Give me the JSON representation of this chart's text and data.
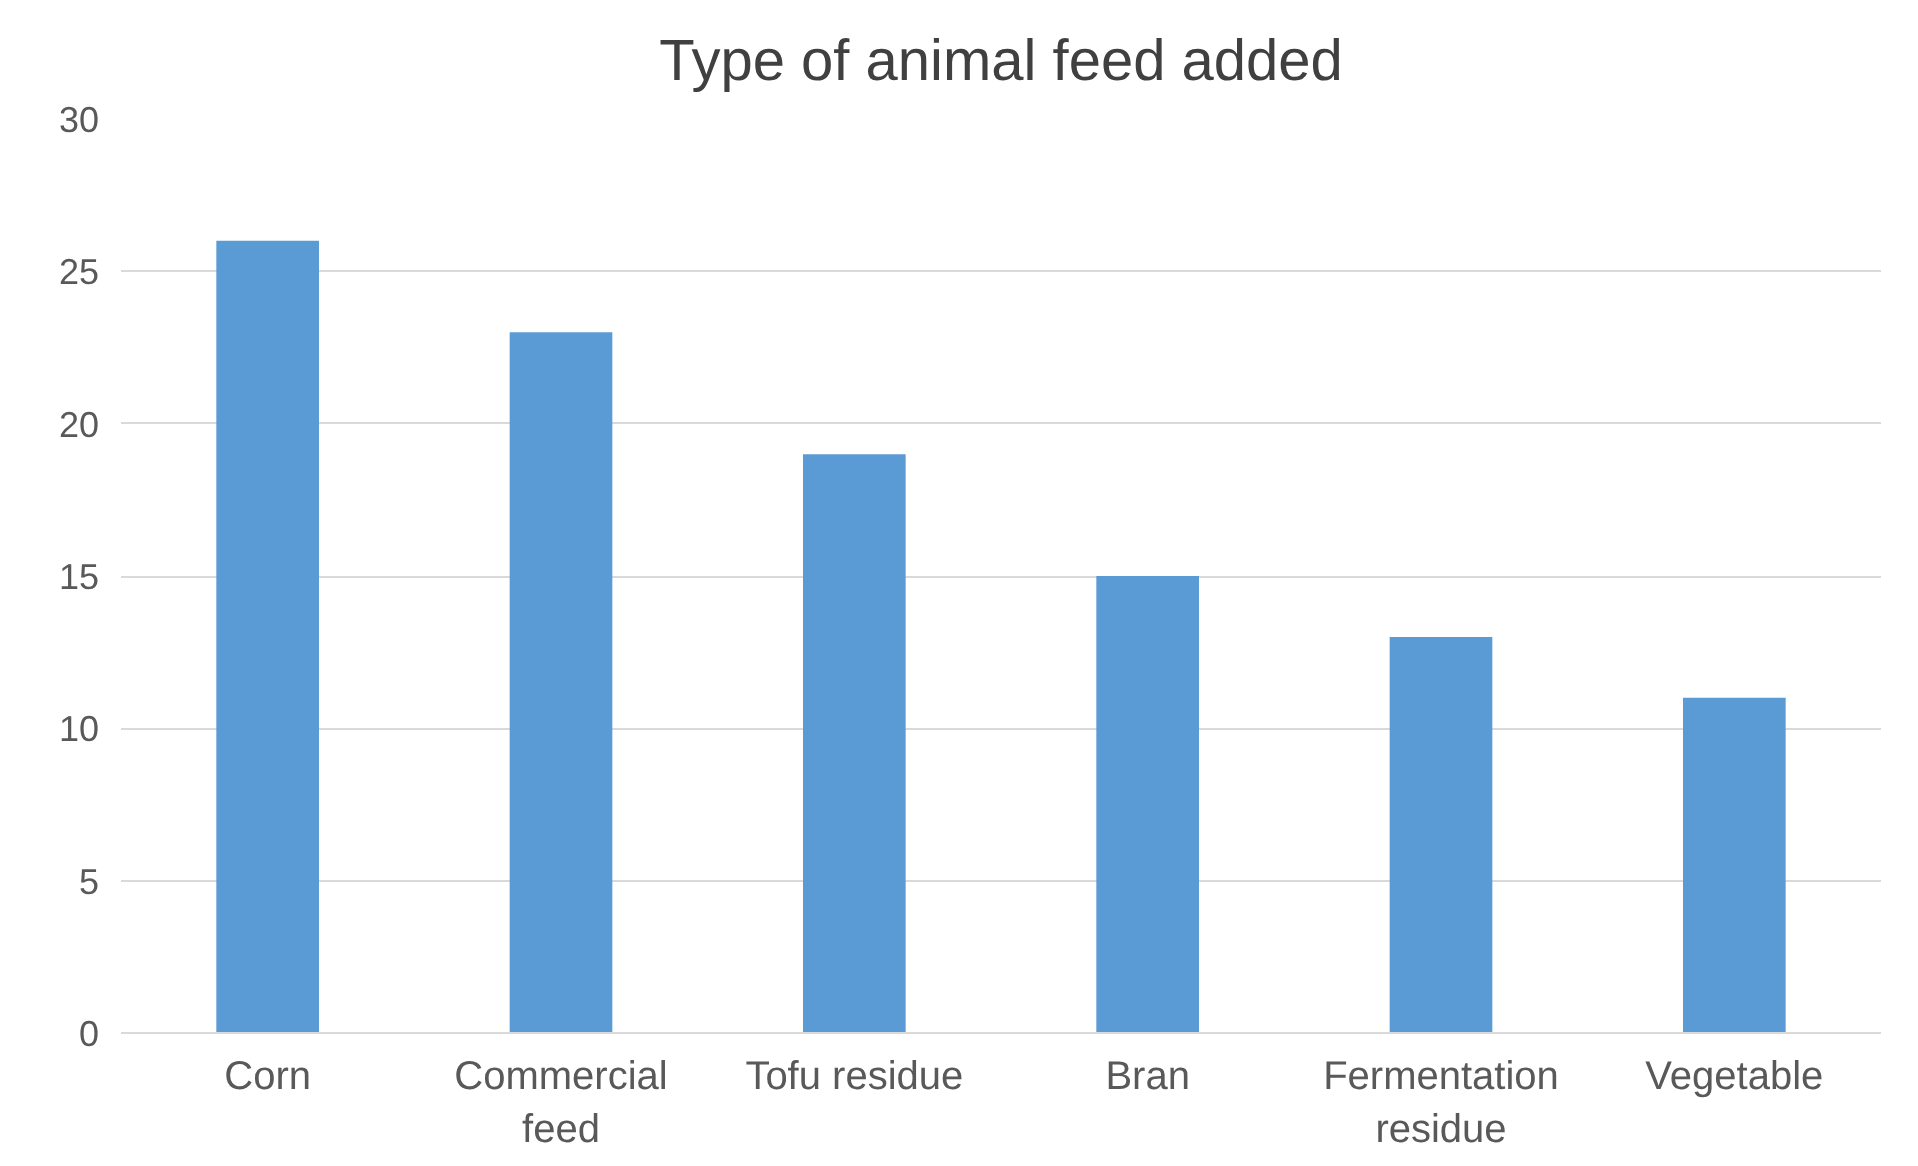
{
  "chart_data": {
    "type": "bar",
    "title": "Type of animal feed added",
    "categories": [
      "Corn",
      "Commercial feed",
      "Tofu residue",
      "Bran",
      "Fermentation residue",
      "Vegetable"
    ],
    "values": [
      26,
      23,
      19,
      15,
      13,
      11
    ],
    "color": "#5b9bd5",
    "ylim": [
      0,
      30
    ],
    "yticks": [
      0,
      5,
      10,
      15,
      20,
      25,
      30
    ],
    "grid": "y"
  }
}
